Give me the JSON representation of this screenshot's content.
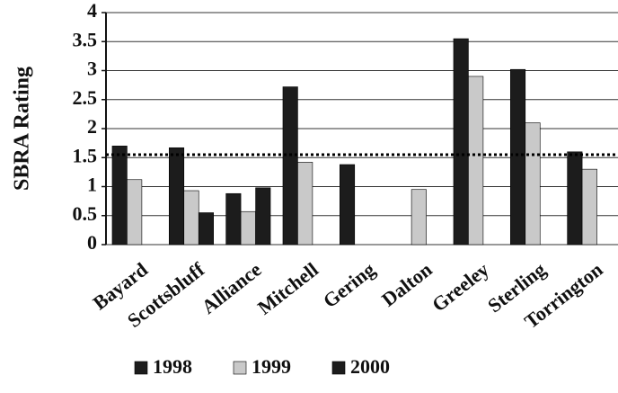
{
  "chart_data": {
    "type": "bar",
    "y_label": "SBRA Rating",
    "categories": [
      "Bayard",
      "Scottsbluff",
      "Alliance",
      "Mitchell",
      "Gering",
      "Dalton",
      "Greeley",
      "Sterling",
      "Torrington"
    ],
    "series": [
      {
        "name": "1998",
        "color": "#1c1c1c",
        "values": [
          1.7,
          1.67,
          0.88,
          2.72,
          1.38,
          null,
          3.55,
          3.02,
          1.6
        ]
      },
      {
        "name": "1999",
        "color": "#c9c9c9",
        "values": [
          1.12,
          0.93,
          0.57,
          1.42,
          null,
          0.95,
          2.9,
          2.1,
          1.3
        ]
      },
      {
        "name": "2000",
        "color": "#1c1c1c",
        "values": [
          null,
          0.55,
          0.98,
          null,
          null,
          null,
          null,
          null,
          null
        ]
      }
    ],
    "ylim": [
      0,
      4
    ],
    "yticks": [
      0,
      0.5,
      1,
      1.5,
      2,
      2.5,
      3,
      3.5,
      4
    ],
    "reference_line": 1.55,
    "grid": true
  }
}
